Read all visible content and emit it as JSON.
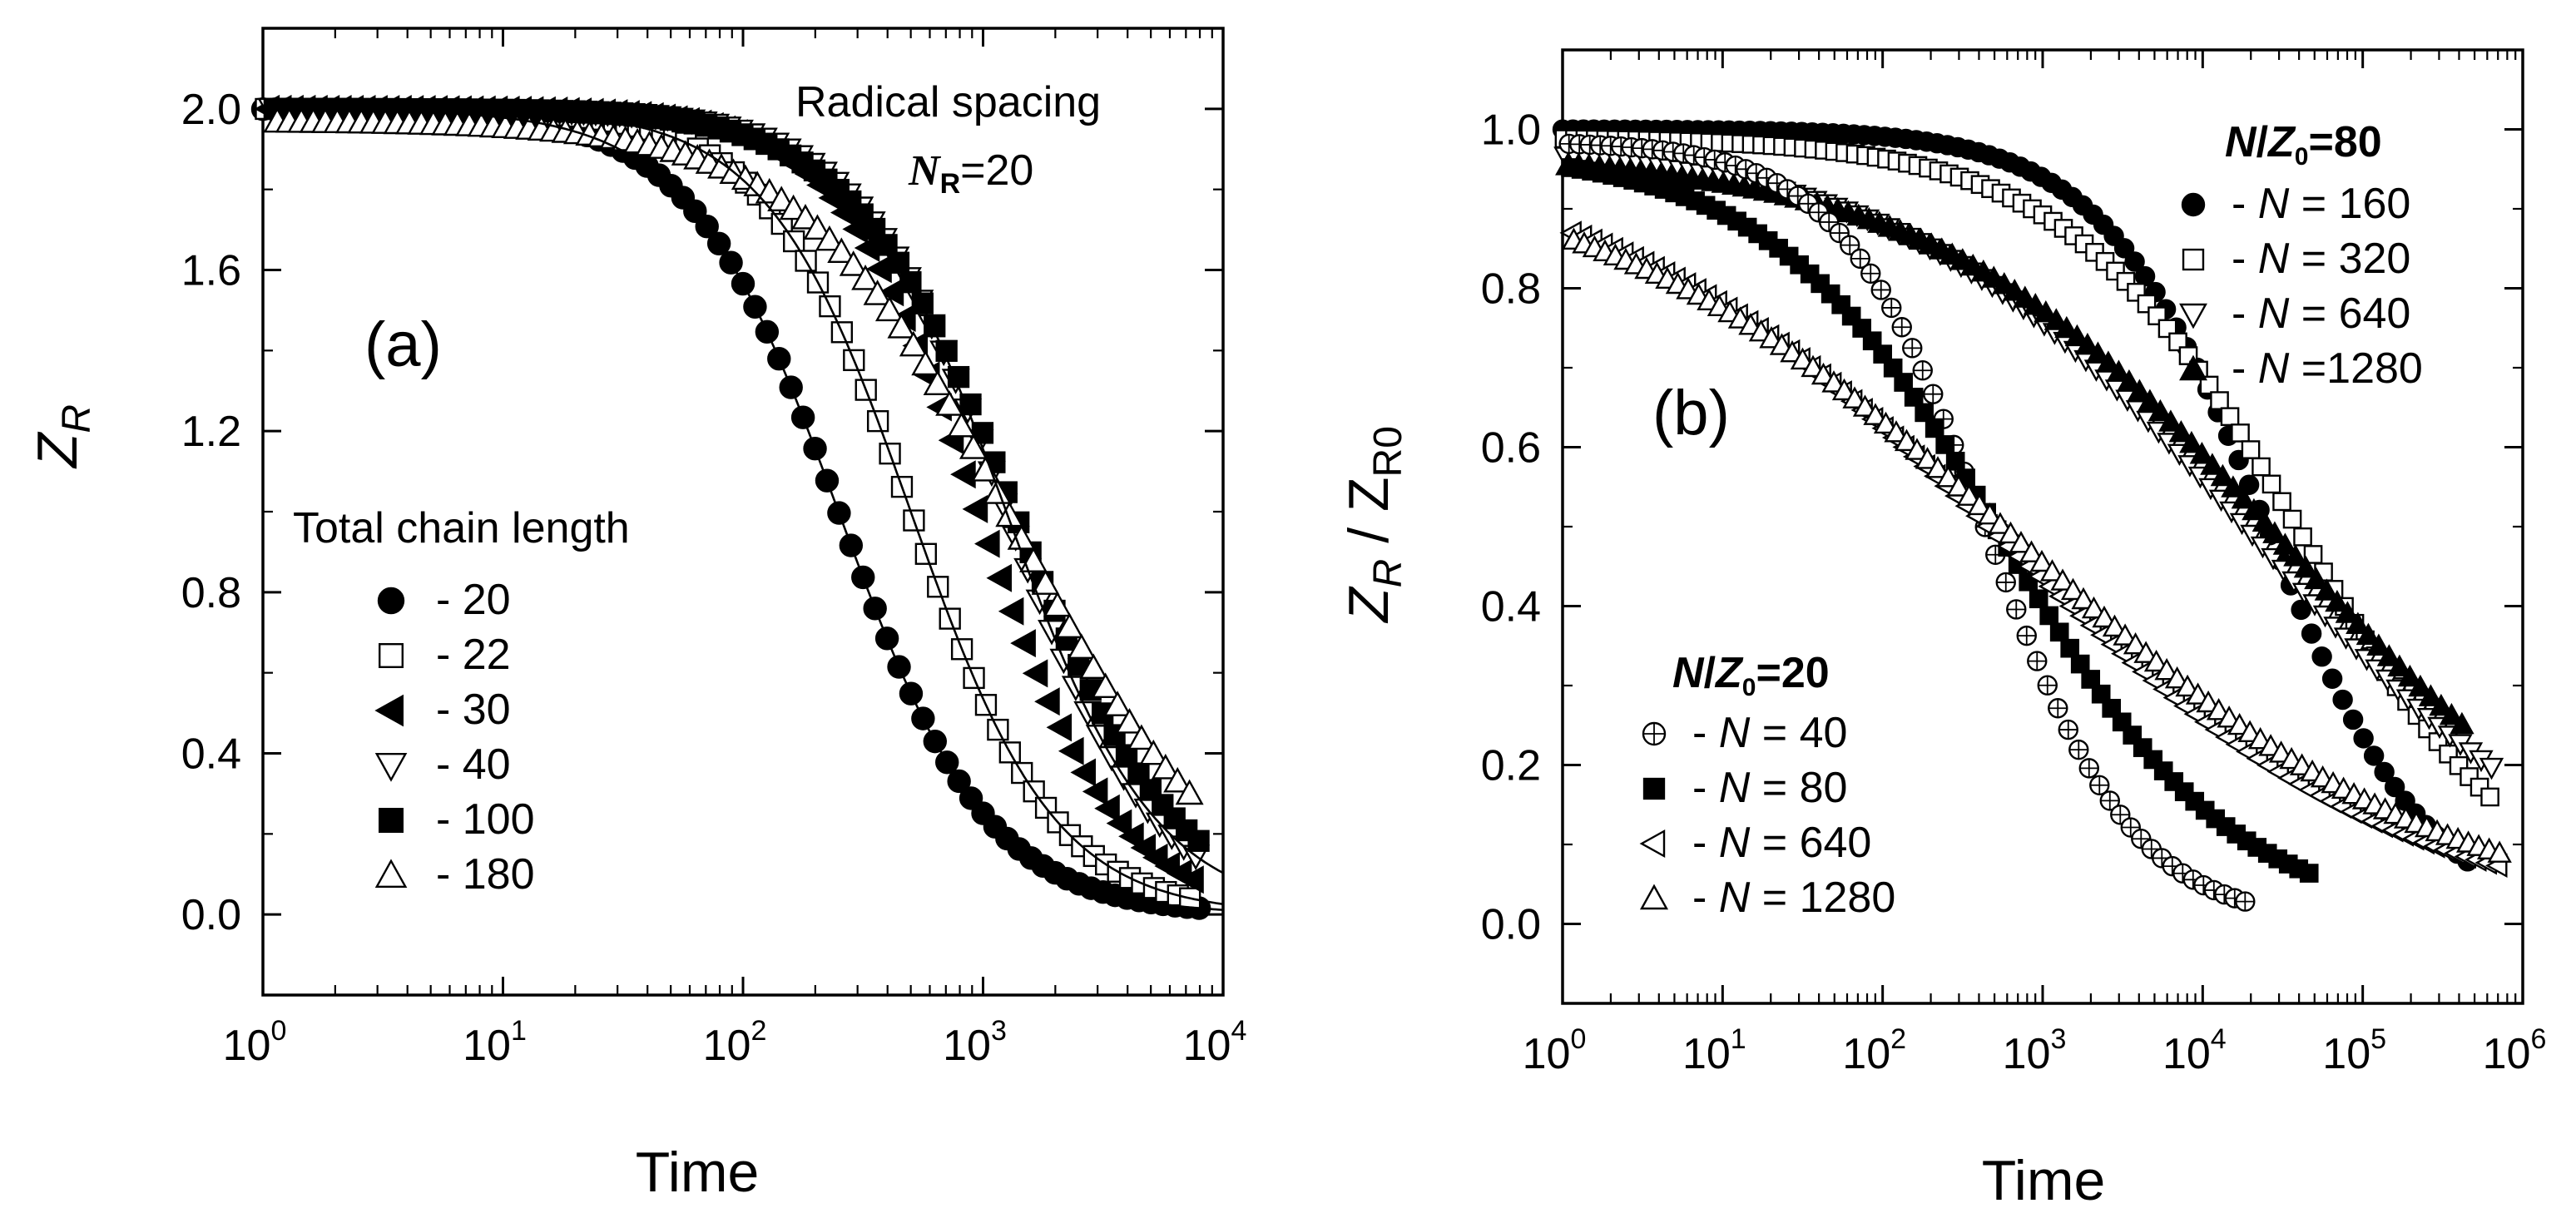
{
  "chart_data": [
    {
      "type": "scatter",
      "panel_label": "(a)",
      "xlabel": "Time",
      "ylabel": "Z",
      "ylabel_sub": "R",
      "xscale": "log",
      "xlim": [
        1,
        10000
      ],
      "ylim": [
        -0.2,
        2.2
      ],
      "x_tick_labels": [
        {
          "base": "10",
          "exp": "0"
        },
        {
          "base": "10",
          "exp": "1"
        },
        {
          "base": "10",
          "exp": "2"
        },
        {
          "base": "10",
          "exp": "3"
        },
        {
          "base": "10",
          "exp": "4"
        }
      ],
      "y_ticks": [
        0.0,
        0.4,
        0.8,
        1.2,
        1.6,
        2.0
      ],
      "y_tick_labels": [
        "0.0",
        "0.4",
        "0.8",
        "1.2",
        "1.6",
        "2.0"
      ],
      "annotation_line1": "Radical spacing",
      "annotation_n": "N",
      "annotation_n_sub": "R",
      "annotation_value": "=20",
      "legend_title": "Total chain length",
      "legend_placement": "bottom-left",
      "series": [
        {
          "name": "20",
          "label": "-   20",
          "marker": "circle-filled",
          "tau": 250,
          "p": 1.4,
          "y0": 2.0,
          "fit": true,
          "t_max": 8000
        },
        {
          "name": "22",
          "label": "-   22",
          "marker": "square-open",
          "tau": 500,
          "p": 1.45,
          "y0": 2.0,
          "fit": true,
          "t_max": 8000
        },
        {
          "name": "30",
          "label": "-   30",
          "marker": "triangle-left-filled",
          "tau": 950,
          "p": 1.5,
          "y0": 2.0,
          "fit": false,
          "t_max": 8000
        },
        {
          "name": "40",
          "label": "-   40",
          "marker": "triangle-down-open",
          "tau": 1250,
          "p": 1.4,
          "y0": 2.0,
          "fit": true,
          "t_max": 8000
        },
        {
          "name": "100",
          "label": "-  100",
          "marker": "square-filled",
          "tau": 1350,
          "p": 1.3,
          "y0": 2.0,
          "fit": false,
          "t_max": 8000
        },
        {
          "name": "180",
          "label": "-  180",
          "marker": "triangle-up-open",
          "tau": 1300,
          "p": 1.0,
          "y0": 1.97,
          "fit": false,
          "t_max": 8000
        }
      ]
    },
    {
      "type": "scatter",
      "panel_label": "(b)",
      "xlabel": "Time",
      "ylabel": "Z",
      "ylabel_sub": "R",
      "ylabel_mid": " / Z",
      "ylabel_sub2": "R0",
      "xscale": "log",
      "xlim": [
        1,
        1000000
      ],
      "ylim": [
        -0.1,
        1.1
      ],
      "x_tick_labels": [
        {
          "base": "10",
          "exp": "0"
        },
        {
          "base": "10",
          "exp": "1"
        },
        {
          "base": "10",
          "exp": "2"
        },
        {
          "base": "10",
          "exp": "3"
        },
        {
          "base": "10",
          "exp": "4"
        },
        {
          "base": "10",
          "exp": "5"
        },
        {
          "base": "10",
          "exp": "6"
        }
      ],
      "y_ticks": [
        0.0,
        0.2,
        0.4,
        0.6,
        0.8,
        1.0
      ],
      "y_tick_labels": [
        "0.0",
        "0.2",
        "0.4",
        "0.6",
        "0.8",
        "1.0"
      ],
      "legend_placement": "top-right and bottom-left",
      "groups": [
        {
          "title_n": "N",
          "title_slash": "/",
          "title_z": "Z",
          "title_sub": "0",
          "title_value": "=80",
          "series": [
            {
              "name": "N = 160",
              "label_pre": "-  ",
              "label_n": "N",
              "label_post": " =  160",
              "marker": "circle-filled",
              "tau": 25000,
              "p": 0.85,
              "y0": 1.0,
              "t_max": 500000
            },
            {
              "name": "N = 320",
              "label_pre": "-  ",
              "label_n": "N",
              "label_post": " =  320",
              "marker": "square-open",
              "tau": 40000,
              "p": 0.6,
              "y0": 0.99,
              "t_max": 700000
            },
            {
              "name": "N = 640",
              "label_pre": "-  ",
              "label_n": "N",
              "label_post": " =  640",
              "marker": "triangle-down-open",
              "tau": 20000,
              "p": 0.4,
              "y0": 0.985,
              "t_max": 700000
            },
            {
              "name": "N = 1280",
              "label_pre": "-  ",
              "label_n": "N",
              "label_post": " =1280",
              "marker": "triangle-up-filled",
              "tau": 30000,
              "p": 0.4,
              "y0": 0.97,
              "t_max": 450000
            }
          ]
        },
        {
          "title_n": "N",
          "title_slash": "/",
          "title_z": "Z",
          "title_sub": "0",
          "title_value": "=20",
          "series": [
            {
              "name": "N = 40",
              "label_pre": "-  ",
              "label_n": "N",
              "label_post": " =  40",
              "marker": "circle-plus-open",
              "tau": 450,
              "p": 0.95,
              "y0": 0.985,
              "t_max": 20000
            },
            {
              "name": "N = 80",
              "label_pre": "-  ",
              "label_n": "N",
              "label_post": " =  80",
              "marker": "square-filled",
              "tau": 550,
              "p": 0.6,
              "y0": 0.975,
              "t_max": 50000
            },
            {
              "name": "N = 640",
              "label_pre": "-  ",
              "label_n": "N",
              "label_post": " =  640",
              "marker": "triangle-left-open",
              "tau": 550,
              "p": 0.35,
              "y0": 0.97,
              "t_max": 800000
            },
            {
              "name": "N = 1280",
              "label_pre": "-  ",
              "label_n": "N",
              "label_post": " =  1280",
              "marker": "triangle-up-open",
              "tau": 700,
              "p": 0.33,
              "y0": 0.965,
              "t_max": 800000
            }
          ]
        }
      ]
    }
  ]
}
